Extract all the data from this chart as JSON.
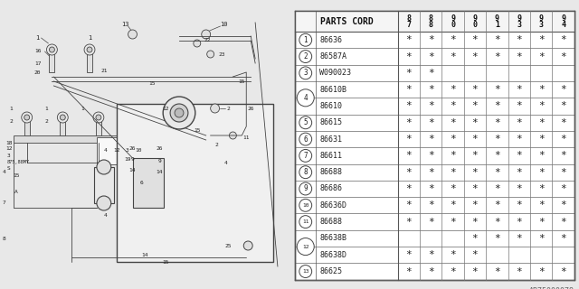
{
  "watermark": "AB75000078",
  "rows": [
    {
      "num": "1",
      "part": "86636",
      "stars": [
        1,
        1,
        1,
        1,
        1,
        1,
        1,
        1
      ],
      "show_circle": true,
      "circle_span": 1
    },
    {
      "num": "2",
      "part": "86587A",
      "stars": [
        1,
        1,
        1,
        1,
        1,
        1,
        1,
        1
      ],
      "show_circle": true,
      "circle_span": 1
    },
    {
      "num": "3",
      "part": "W090023",
      "stars": [
        1,
        1,
        0,
        0,
        0,
        0,
        0,
        0
      ],
      "show_circle": true,
      "circle_span": 1
    },
    {
      "num": "4",
      "part": "86610B",
      "stars": [
        1,
        1,
        1,
        1,
        1,
        1,
        1,
        1
      ],
      "show_circle": true,
      "circle_span": 2
    },
    {
      "num": "4",
      "part": "86610",
      "stars": [
        1,
        1,
        1,
        1,
        1,
        1,
        1,
        1
      ],
      "show_circle": false,
      "circle_span": 1
    },
    {
      "num": "5",
      "part": "86615",
      "stars": [
        1,
        1,
        1,
        1,
        1,
        1,
        1,
        1
      ],
      "show_circle": true,
      "circle_span": 1
    },
    {
      "num": "6",
      "part": "86631",
      "stars": [
        1,
        1,
        1,
        1,
        1,
        1,
        1,
        1
      ],
      "show_circle": true,
      "circle_span": 1
    },
    {
      "num": "7",
      "part": "86611",
      "stars": [
        1,
        1,
        1,
        1,
        1,
        1,
        1,
        1
      ],
      "show_circle": true,
      "circle_span": 1
    },
    {
      "num": "8",
      "part": "86688",
      "stars": [
        1,
        1,
        1,
        1,
        1,
        1,
        1,
        1
      ],
      "show_circle": true,
      "circle_span": 1
    },
    {
      "num": "9",
      "part": "86686",
      "stars": [
        1,
        1,
        1,
        1,
        1,
        1,
        1,
        1
      ],
      "show_circle": true,
      "circle_span": 1
    },
    {
      "num": "10",
      "part": "86636D",
      "stars": [
        1,
        1,
        1,
        1,
        1,
        1,
        1,
        1
      ],
      "show_circle": true,
      "circle_span": 1
    },
    {
      "num": "11",
      "part": "86688",
      "stars": [
        1,
        1,
        1,
        1,
        1,
        1,
        1,
        1
      ],
      "show_circle": true,
      "circle_span": 1
    },
    {
      "num": "12",
      "part": "86638B",
      "stars": [
        0,
        0,
        0,
        1,
        1,
        1,
        1,
        1
      ],
      "show_circle": true,
      "circle_span": 2
    },
    {
      "num": "12",
      "part": "86638D",
      "stars": [
        1,
        1,
        1,
        1,
        0,
        0,
        0,
        0
      ],
      "show_circle": false,
      "circle_span": 1
    },
    {
      "num": "13",
      "part": "86625",
      "stars": [
        1,
        1,
        1,
        1,
        1,
        1,
        1,
        1
      ],
      "show_circle": true,
      "circle_span": 1
    }
  ],
  "year_headers": [
    [
      "8",
      "7"
    ],
    [
      "8",
      "8"
    ],
    [
      "9",
      "0"
    ],
    [
      "9",
      "0"
    ],
    [
      "9",
      "1"
    ],
    [
      "9",
      "3"
    ],
    [
      "9",
      "3"
    ],
    [
      "9",
      "4"
    ]
  ],
  "bg_color": "#e8e8e8",
  "white": "#ffffff",
  "dark": "#333333",
  "mid": "#888888"
}
